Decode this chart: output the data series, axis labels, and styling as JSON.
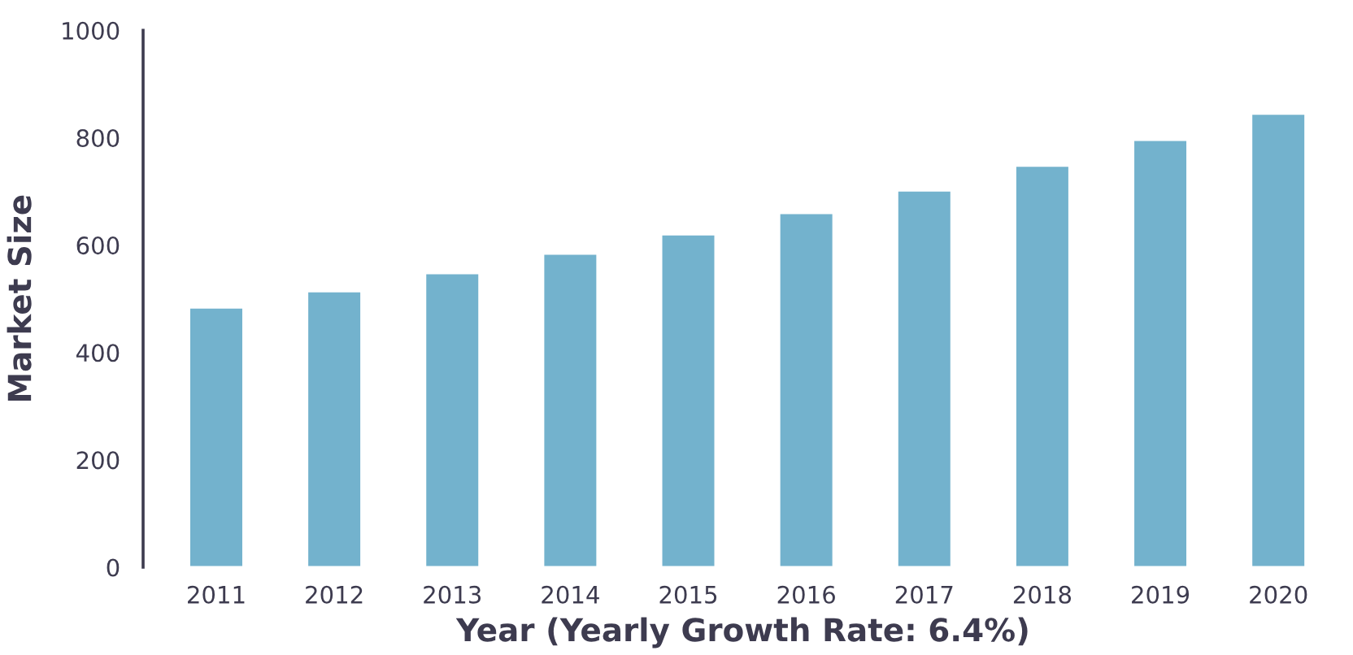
{
  "chart_data": {
    "type": "bar",
    "xlabel": "Year (Yearly Growth Rate: 6.4%)",
    "ylabel": "Market Size",
    "categories": [
      "2011",
      "2012",
      "2013",
      "2014",
      "2015",
      "2016",
      "2017",
      "2018",
      "2019",
      "2020"
    ],
    "values": [
      484,
      514,
      548,
      584,
      620,
      660,
      702,
      748,
      796,
      845
    ],
    "color": "#73b2cd",
    "ylim": [
      0,
      1000
    ],
    "yticks": [
      0,
      200,
      400,
      600,
      800,
      1000
    ]
  }
}
